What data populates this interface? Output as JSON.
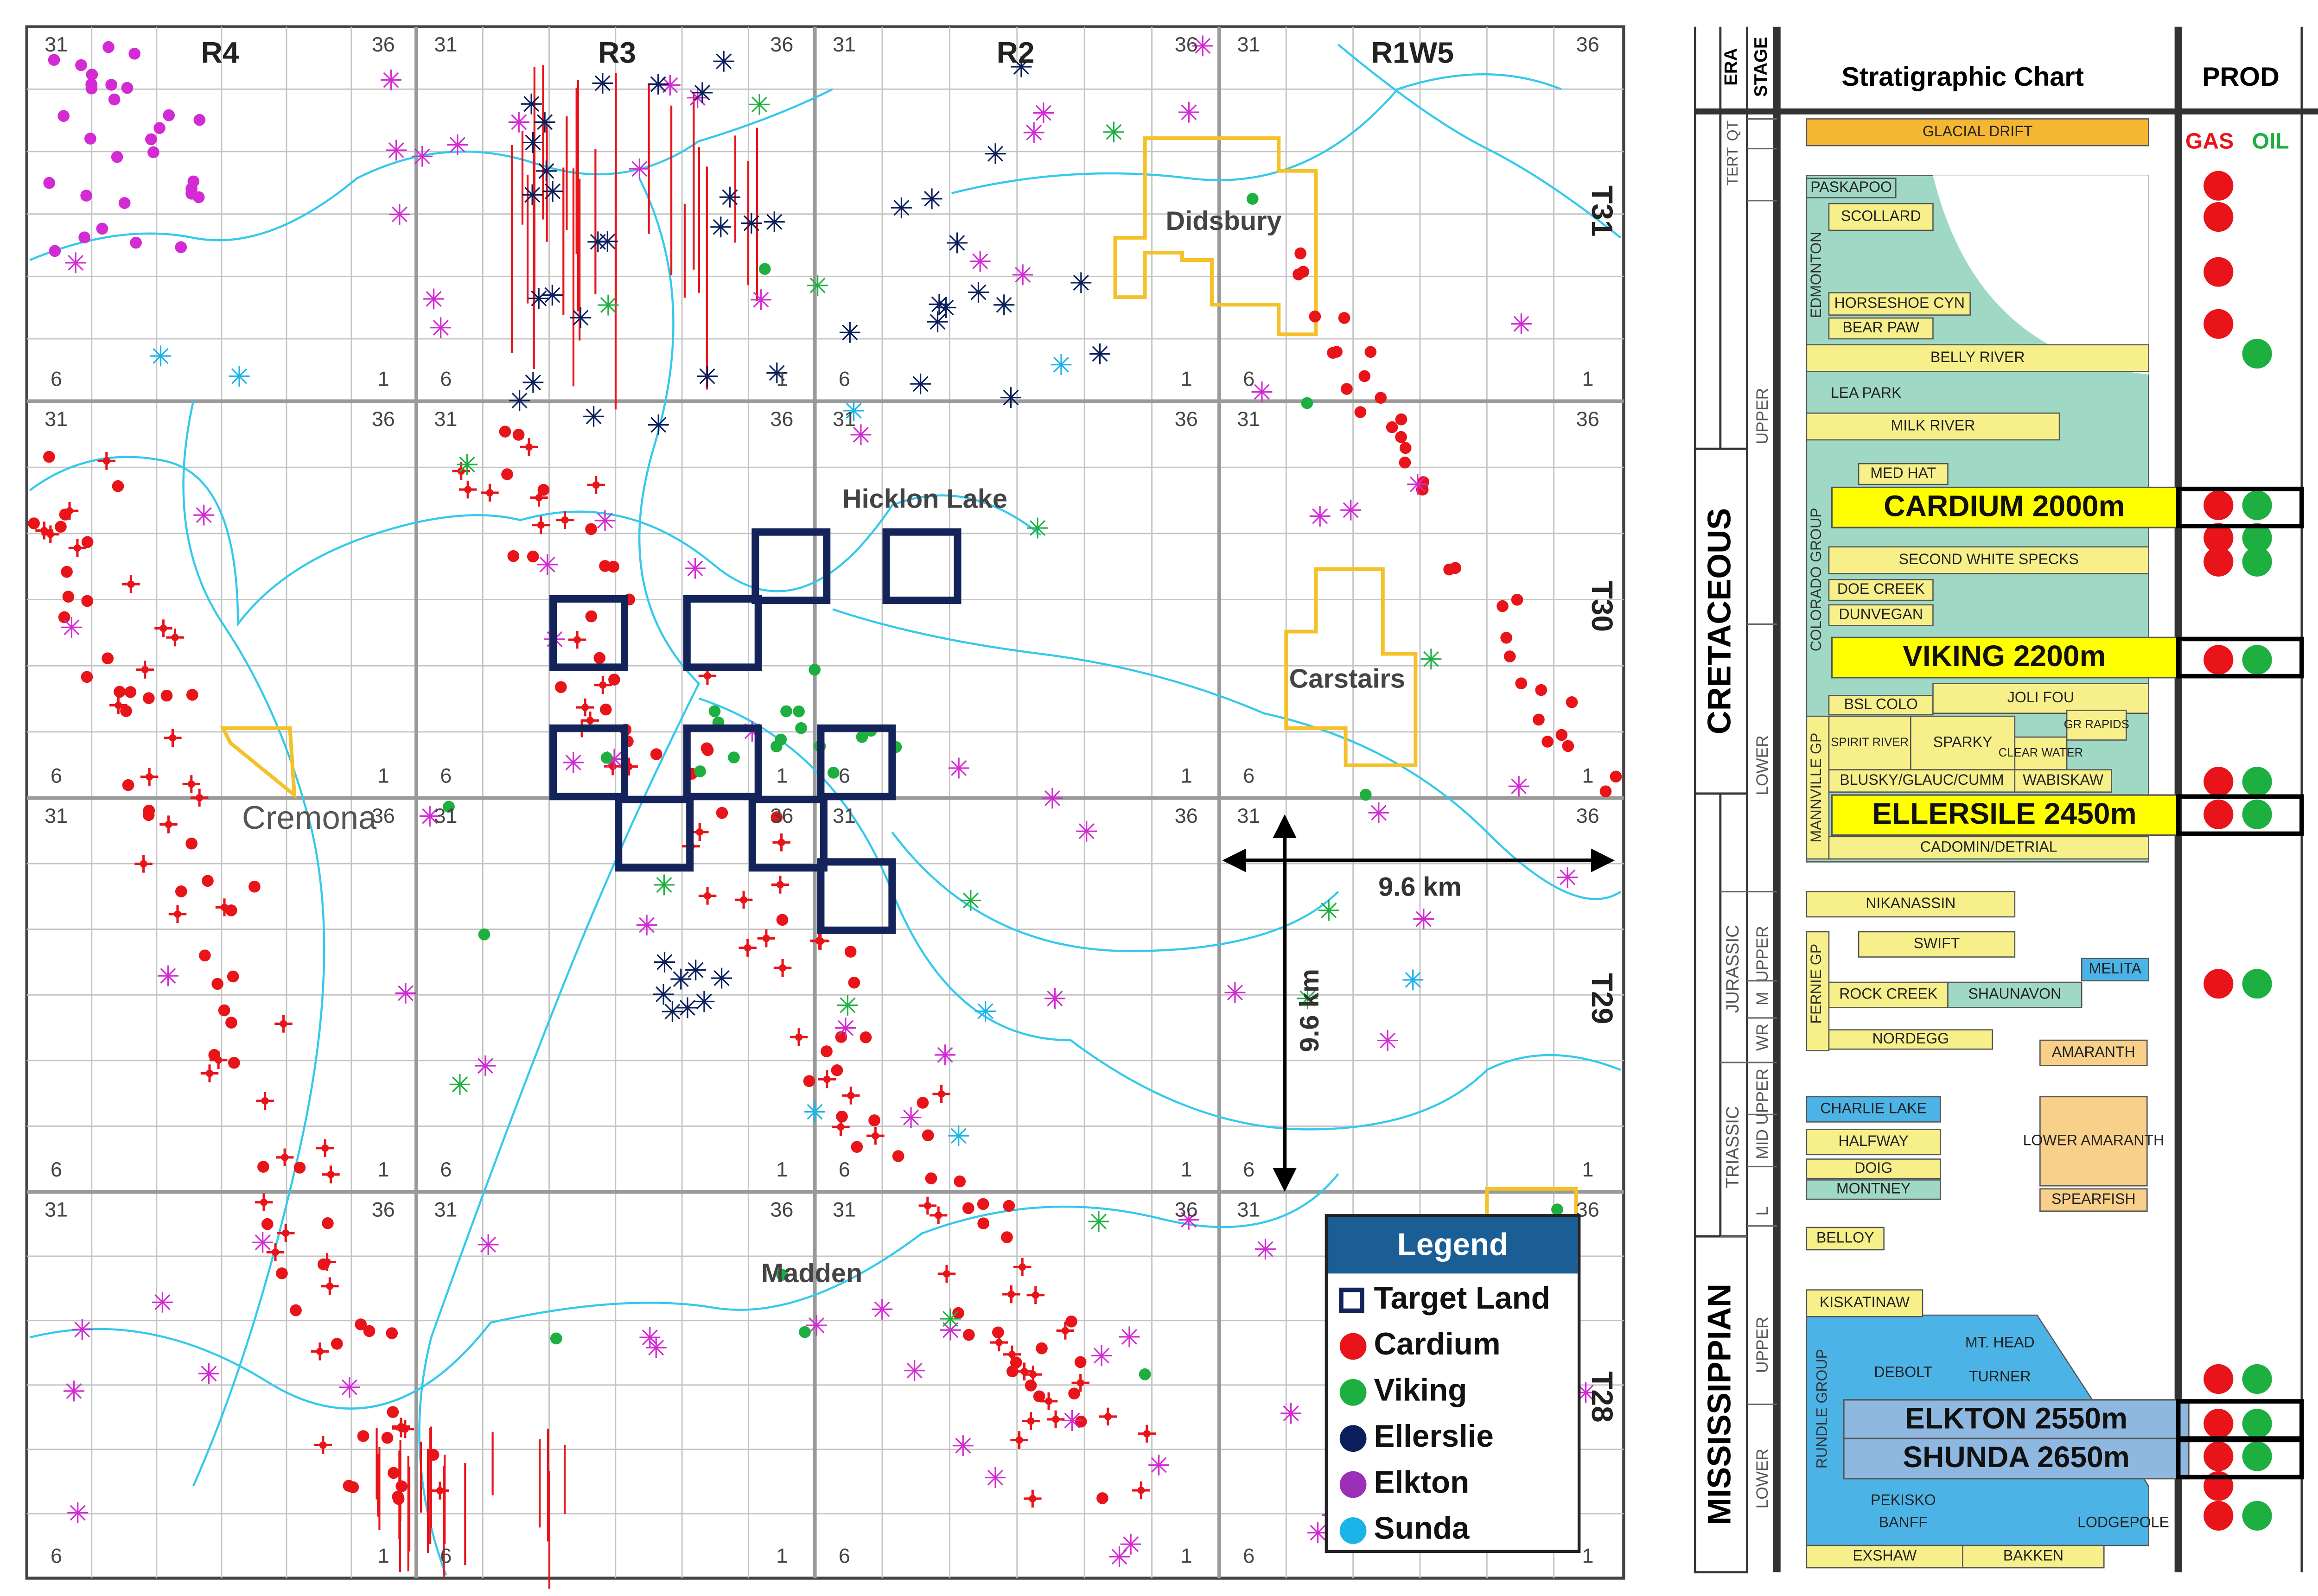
{
  "map": {
    "range_labels": [
      "R4",
      "R3",
      "R2",
      "R1W5"
    ],
    "township_labels": [
      "T31",
      "T30",
      "T29",
      "T28"
    ],
    "section_labels": {
      "nw": "31",
      "ne": "36",
      "sw": "6",
      "se": "1"
    },
    "places": [
      "Didsbury",
      "Hicklon Lake",
      "Carstairs",
      "Cremona",
      "Madden"
    ],
    "scale": {
      "horizontal": "9.6 km",
      "vertical": "9.6 km"
    },
    "legend": {
      "title": "Legend",
      "items": [
        {
          "label": "Target Land",
          "color": "#14245a"
        },
        {
          "label": "Cardium",
          "color": "#e8141a"
        },
        {
          "label": "Viking",
          "color": "#1db040"
        },
        {
          "label": "Ellerslie",
          "color": "#0b1f5c"
        },
        {
          "label": "Elkton",
          "color": "#9b2fb5"
        },
        {
          "label": "Sunda",
          "color": "#1ab4e8"
        }
      ]
    }
  },
  "strat": {
    "headers": {
      "era": "ERA",
      "stage": "STAGE",
      "title": "Stratigraphic Chart",
      "prod": "PROD",
      "gas": "GAS",
      "oil": "OIL"
    },
    "eras": [
      "CRETACEOUS",
      "MISSISSIPPIAN",
      "QT",
      "TERT",
      "JURASSIC",
      "TRIASSIC"
    ],
    "stages": [
      "UPPER",
      "LOWER",
      "UPPER",
      "M",
      "WR",
      "UPPER",
      "MID",
      "L",
      "UPPER",
      "LOWER"
    ],
    "groups": [
      "EDMONTON",
      "COLORADO GROUP",
      "MANNVILLE GP",
      "FERNIE GP",
      "RUNDLE GROUP"
    ],
    "formations": [
      "GLACIAL DRIFT",
      "PASKAPOO",
      "SCOLLARD",
      "HORSESHOE CYN",
      "BEAR PAW",
      "BELLY RIVER",
      "LEA PARK",
      "MILK RIVER",
      "MED HAT",
      "SECOND WHITE SPECKS",
      "DOE CREEK",
      "DUNVEGAN",
      "BSL COLO",
      "JOLI FOU",
      "SPIRIT RIVER",
      "SPARKY",
      "CLEAR WATER",
      "GR RAPIDS",
      "BLUSKY/GLAUC/CUMM",
      "WABISKAW",
      "CADOMIN/DETRIAL",
      "NIKANASSIN",
      "SWIFT",
      "MELITA",
      "ROCK CREEK",
      "SHAUNAVON",
      "NORDEGG",
      "AMARANTH",
      "CHARLIE LAKE",
      "HALFWAY",
      "DOIG",
      "MONTNEY",
      "LOWER AMARANTH",
      "SPEARFISH",
      "BELLOY",
      "KISKATINAW",
      "DEBOLT",
      "MT. HEAD",
      "TURNER",
      "PEKISKO",
      "BANFF",
      "LODGEPOLE",
      "EXSHAW",
      "BAKKEN"
    ],
    "targets": [
      "CARDIUM 2000m",
      "VIKING 2200m",
      "ELLERSILE 2450m",
      "ELKTON 2550m",
      "SHUNDA 2650m"
    ]
  }
}
